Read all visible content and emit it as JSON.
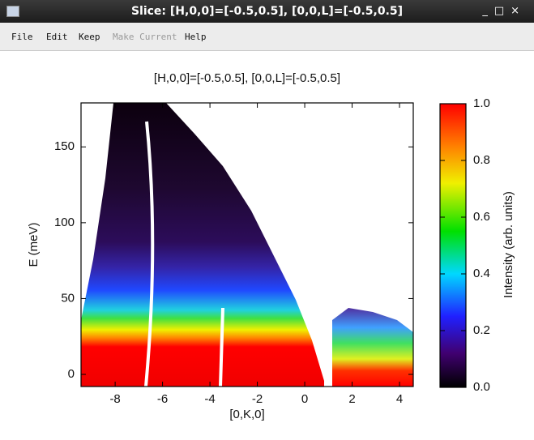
{
  "window": {
    "title": "Slice: [H,0,0]=[-0.5,0.5], [0,0,L]=[-0.5,0.5]",
    "menu": [
      "File",
      "Edit",
      "Keep",
      "Make Current",
      "Help"
    ]
  },
  "chart_data": {
    "type": "heatmap",
    "title": "[H,0,0]=[-0.5,0.5], [0,0,L]=[-0.5,0.5]",
    "x_label": "[0,K,0]",
    "y_label": "E (meV)",
    "xlim": [
      -9.44,
      4.58
    ],
    "xticks": [
      -8,
      -6,
      -4,
      -2,
      0,
      2,
      4
    ],
    "ylim": [
      -8,
      179
    ],
    "yticks": [
      0,
      50,
      100,
      150
    ],
    "colorbar": {
      "label": "Intensity (arb. units)",
      "lim": [
        0,
        1
      ],
      "ticks": [
        {
          "value": 0,
          "label": "0.0"
        },
        0.2,
        0.4,
        0.6,
        0.8,
        {
          "value": 1,
          "label": "1.0"
        }
      ]
    }
  }
}
